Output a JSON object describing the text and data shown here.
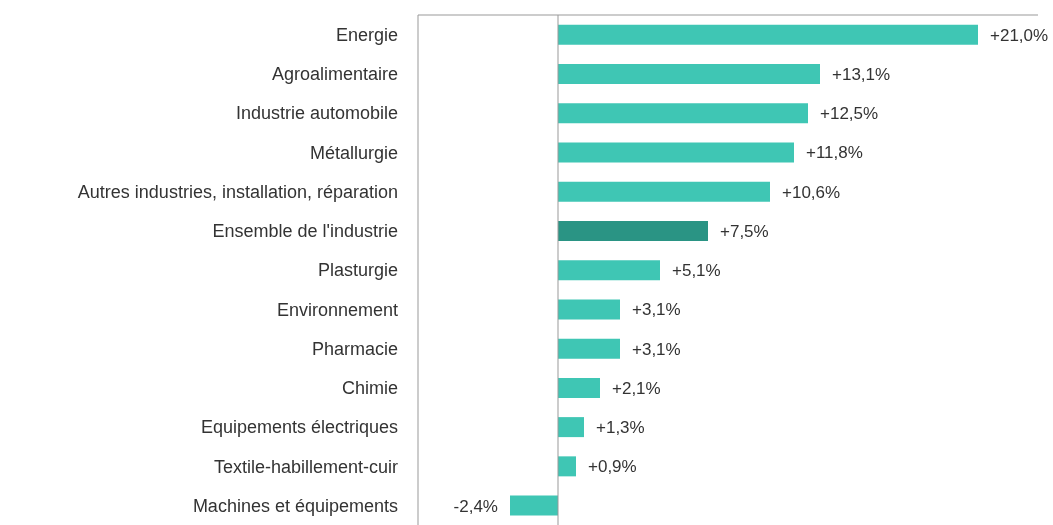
{
  "chart_data": {
    "type": "bar",
    "orientation": "horizontal",
    "categories": [
      "Energie",
      "Agroalimentaire",
      "Industrie automobile",
      "Métallurgie",
      "Autres industries, installation, réparation",
      "Ensemble de l'industrie",
      "Plasturgie",
      "Environnement",
      "Pharmacie",
      "Chimie",
      "Equipements électriques",
      "Textile-habillement-cuir",
      "Machines et équipements"
    ],
    "values": [
      21.0,
      13.1,
      12.5,
      11.8,
      10.6,
      7.5,
      5.1,
      3.1,
      3.1,
      2.1,
      1.3,
      0.9,
      -2.4
    ],
    "value_labels": [
      "+21,0%",
      "+13,1%",
      "+12,5%",
      "+11,8%",
      "+10,6%",
      "+7,5%",
      "+5,1%",
      "+3,1%",
      "+3,1%",
      "+2,1%",
      "+1,3%",
      "+0,9%",
      "-2,4%"
    ],
    "colors": [
      "#3fc6b4",
      "#3fc6b4",
      "#3fc6b4",
      "#3fc6b4",
      "#3fc6b4",
      "#2a9484",
      "#3fc6b4",
      "#3fc6b4",
      "#3fc6b4",
      "#3fc6b4",
      "#3fc6b4",
      "#3fc6b4",
      "#3fc6b4"
    ],
    "xlim": [
      -7,
      24
    ]
  }
}
